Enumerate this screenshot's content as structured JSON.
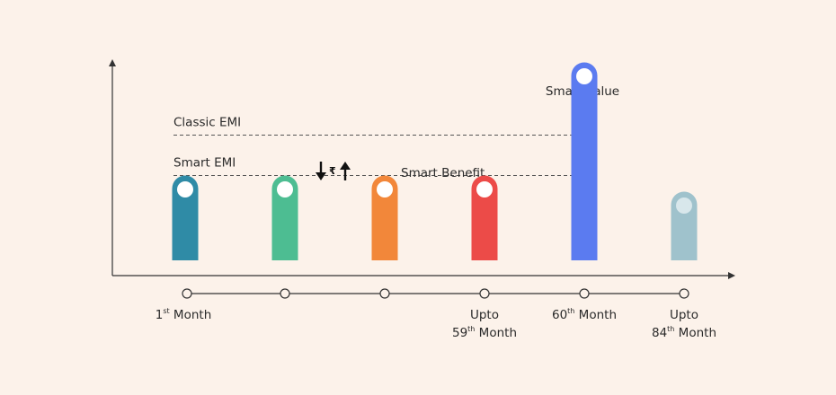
{
  "chart_data": {
    "type": "bar",
    "categories": [
      "1st Month",
      "",
      "",
      "Upto 59th Month",
      "60th Month",
      "Upto 84th Month"
    ],
    "values": [
      2.1,
      2.1,
      2.1,
      2.1,
      4.9,
      1.7
    ],
    "colors": [
      "#2f8ba6",
      "#4dbd92",
      "#f2873a",
      "#ec4b48",
      "#5b7bf0",
      "#9fc2cc"
    ],
    "reference_lines": [
      {
        "label": "Classic EMI",
        "value": 3.1
      },
      {
        "label": "Smart EMI",
        "value": 2.1
      }
    ],
    "annotations": {
      "smart_value": "Smart Value",
      "smart_benefit": "Smart Benefit",
      "rupee_symbol": "₹"
    },
    "x_labels": [
      {
        "prefix": "",
        "number": "1",
        "sup": "st",
        "suffix": " Month"
      },
      null,
      null,
      {
        "prefix": "Upto",
        "number": "59",
        "sup": "th",
        "suffix": " Month"
      },
      {
        "prefix": "",
        "number": "60",
        "sup": "th",
        "suffix": " Month"
      },
      {
        "prefix": "Upto",
        "number": "84",
        "sup": "th",
        "suffix": " Month"
      }
    ],
    "ylim": [
      0,
      6
    ],
    "grid": false
  }
}
